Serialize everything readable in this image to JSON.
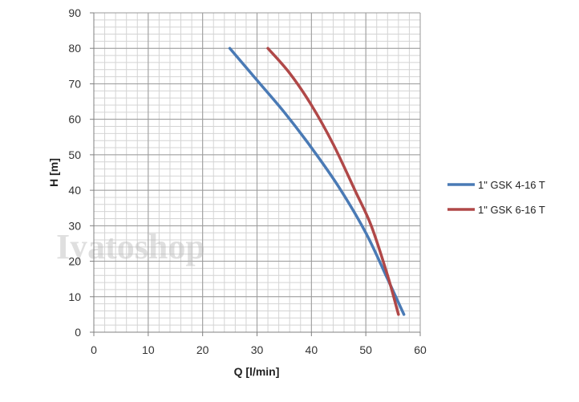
{
  "chart_data": {
    "type": "line",
    "title": "",
    "xlabel": "Q [l/min]",
    "ylabel": "H [m]",
    "xlim": [
      0,
      60
    ],
    "ylim": [
      0,
      90
    ],
    "x_ticks": [
      0,
      10,
      20,
      30,
      40,
      50,
      60
    ],
    "y_ticks": [
      0,
      10,
      20,
      30,
      40,
      50,
      60,
      70,
      80,
      90
    ],
    "x_minor_step": 2,
    "y_minor_step": 2,
    "grid": true,
    "legend_position": "right",
    "series": [
      {
        "name": "1\" GSK 4-16 T",
        "color": "#4a7ab5",
        "x": [
          25,
          30,
          35,
          40,
          45,
          50,
          54,
          57
        ],
        "y": [
          80,
          71,
          62,
          52,
          41,
          28,
          15,
          5
        ]
      },
      {
        "name": "1\" GSK 6-16 T",
        "color": "#b04848",
        "x": [
          32,
          36,
          40,
          44,
          48,
          51,
          54,
          56
        ],
        "y": [
          80,
          73,
          64,
          53,
          40,
          30,
          16,
          5
        ]
      }
    ]
  },
  "watermark": "Iyatoshop"
}
